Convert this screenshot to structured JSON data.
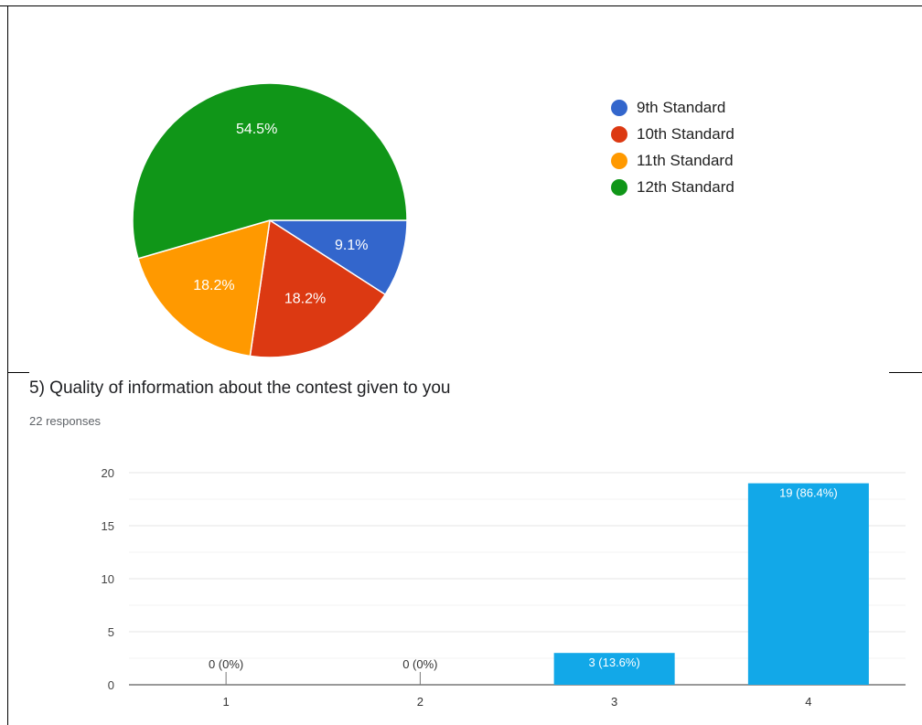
{
  "pie_chart": {
    "chart_data": {
      "type": "pie",
      "labels": [
        "9th Standard",
        "10th Standard",
        "11th Standard",
        "12th Standard"
      ],
      "values": [
        9.1,
        18.2,
        18.2,
        54.5
      ],
      "value_labels": [
        "9.1%",
        "18.2%",
        "18.2%",
        "54.5%"
      ],
      "colors": [
        "#3366cc",
        "#dc3912",
        "#ff9900",
        "#109618"
      ],
      "legend_position": "right"
    }
  },
  "question": {
    "title": "5) Quality of information about the contest given to you",
    "responses": "22 responses"
  },
  "chart_data": {
    "type": "bar",
    "categories": [
      "1",
      "2",
      "3",
      "4"
    ],
    "values": [
      0,
      0,
      3,
      19
    ],
    "data_labels": [
      "0 (0%)",
      "0 (0%)",
      "3 (13.6%)",
      "19 (86.4%)"
    ],
    "ylim": [
      0,
      20
    ],
    "yticks": [
      0,
      5,
      10,
      15,
      20
    ],
    "grid": true,
    "bar_color": "#12a8e8"
  }
}
